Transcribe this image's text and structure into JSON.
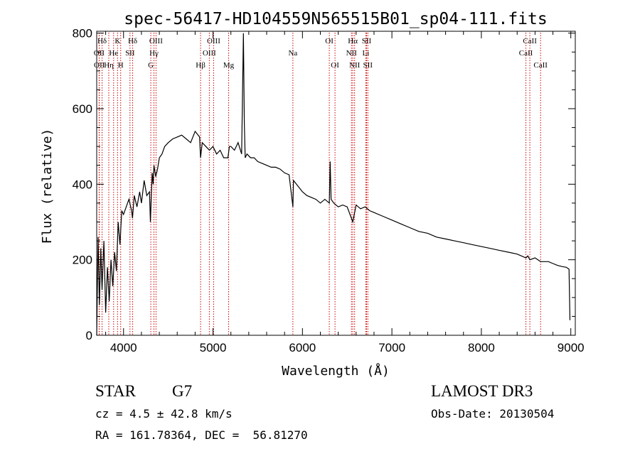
{
  "chart_data": {
    "type": "line",
    "title": "spec-56417-HD104559N565515B01_sp04-111.fits",
    "xlabel": "Wavelength (Å)",
    "ylabel": "Flux (relative)",
    "xlim": [
      3700,
      9050
    ],
    "ylim": [
      0,
      805
    ],
    "x_ticks": [
      4000,
      5000,
      6000,
      7000,
      8000,
      9000
    ],
    "y_ticks": [
      0,
      200,
      400,
      600,
      800
    ],
    "grid": false,
    "line_color": "#000000",
    "marker_color": "#cc0000",
    "series": [
      {
        "x": [
          3700,
          3715,
          3730,
          3745,
          3760,
          3780,
          3800,
          3820,
          3840,
          3860,
          3880,
          3900,
          3920,
          3940,
          3960,
          3980,
          4000,
          4030,
          4060,
          4090,
          4100,
          4120,
          4150,
          4180,
          4200,
          4230,
          4260,
          4290,
          4300,
          4320,
          4330,
          4340,
          4360,
          4380,
          4400,
          4430,
          4460,
          4500,
          4550,
          4600,
          4650,
          4700,
          4750,
          4800,
          4850,
          4861,
          4880,
          4920,
          4960,
          5000,
          5040,
          5080,
          5120,
          5167,
          5183,
          5200,
          5240,
          5280,
          5320,
          5340,
          5350,
          5360,
          5380,
          5420,
          5460,
          5500,
          5550,
          5600,
          5650,
          5700,
          5750,
          5800,
          5850,
          5893,
          5900,
          5950,
          6000,
          6050,
          6100,
          6150,
          6200,
          6250,
          6300,
          6310,
          6320,
          6350,
          6400,
          6450,
          6500,
          6563,
          6600,
          6650,
          6700,
          6750,
          6800,
          6900,
          7000,
          7100,
          7200,
          7300,
          7400,
          7500,
          7600,
          7700,
          7800,
          7900,
          8000,
          8100,
          8200,
          8300,
          8400,
          8498,
          8520,
          8542,
          8600,
          8662,
          8700,
          8750,
          8800,
          8850,
          8900,
          8950,
          8980,
          8990
        ],
        "y": [
          0,
          260,
          80,
          230,
          120,
          250,
          60,
          180,
          90,
          200,
          130,
          220,
          170,
          300,
          240,
          330,
          320,
          340,
          360,
          330,
          310,
          370,
          340,
          380,
          350,
          410,
          370,
          380,
          300,
          430,
          400,
          450,
          420,
          440,
          470,
          480,
          500,
          510,
          520,
          525,
          530,
          520,
          510,
          540,
          525,
          470,
          510,
          500,
          490,
          500,
          480,
          490,
          470,
          470,
          500,
          500,
          490,
          510,
          480,
          800,
          560,
          470,
          480,
          470,
          470,
          460,
          455,
          450,
          445,
          445,
          440,
          430,
          425,
          340,
          410,
          395,
          380,
          370,
          365,
          360,
          350,
          360,
          350,
          460,
          360,
          350,
          340,
          345,
          340,
          300,
          345,
          335,
          340,
          330,
          325,
          315,
          305,
          295,
          285,
          275,
          270,
          260,
          255,
          250,
          245,
          240,
          235,
          230,
          225,
          220,
          215,
          205,
          210,
          200,
          205,
          195,
          195,
          195,
          190,
          185,
          182,
          180,
          175,
          40
        ]
      }
    ],
    "line_markers": [
      {
        "label": "Hδ",
        "x": 3760,
        "row": 0
      },
      {
        "label": "OII",
        "x": 3727,
        "row": 1
      },
      {
        "label": "OII",
        "x": 3729,
        "row": 2
      },
      {
        "label": "K",
        "x": 3933,
        "row": 0
      },
      {
        "label": "He",
        "x": 3889,
        "row": 1
      },
      {
        "label": "Hη",
        "x": 3835,
        "row": 2
      },
      {
        "label": "Hδ",
        "x": 4102,
        "row": 0
      },
      {
        "label": "SII",
        "x": 4072,
        "row": 1
      },
      {
        "label": "H",
        "x": 3968,
        "row": 2
      },
      {
        "label": "OIII",
        "x": 4363,
        "row": 0
      },
      {
        "label": "Hγ",
        "x": 4340,
        "row": 1
      },
      {
        "label": "G",
        "x": 4305,
        "row": 2
      },
      {
        "label": "OIII",
        "x": 5007,
        "row": 0
      },
      {
        "label": "OIII",
        "x": 4959,
        "row": 1
      },
      {
        "label": "Hβ",
        "x": 4861,
        "row": 2
      },
      {
        "label": "Mg",
        "x": 5175,
        "row": 2
      },
      {
        "label": "Na",
        "x": 5893,
        "row": 1
      },
      {
        "label": "OI",
        "x": 6300,
        "row": 0
      },
      {
        "label": "OI",
        "x": 6364,
        "row": 2
      },
      {
        "label": "Hα",
        "x": 6563,
        "row": 0
      },
      {
        "label": "NII",
        "x": 6548,
        "row": 1
      },
      {
        "label": "NII",
        "x": 6583,
        "row": 2
      },
      {
        "label": "SII",
        "x": 6717,
        "row": 0
      },
      {
        "label": "Li",
        "x": 6708,
        "row": 1
      },
      {
        "label": "SII",
        "x": 6731,
        "row": 2
      },
      {
        "label": "CaII",
        "x": 8542,
        "row": 0
      },
      {
        "label": "CaII",
        "x": 8498,
        "row": 1
      },
      {
        "label": "CaII",
        "x": 8662,
        "row": 2
      }
    ]
  },
  "footer": {
    "object_class": "STAR",
    "subclass": "G7",
    "survey": "LAMOST DR3",
    "redshift_text": "cz = 4.5 ± 42.8 km/s",
    "obs_date_text": "Obs-Date: 20130504",
    "coords_text": "RA = 161.78364, DEC =  56.81270"
  }
}
